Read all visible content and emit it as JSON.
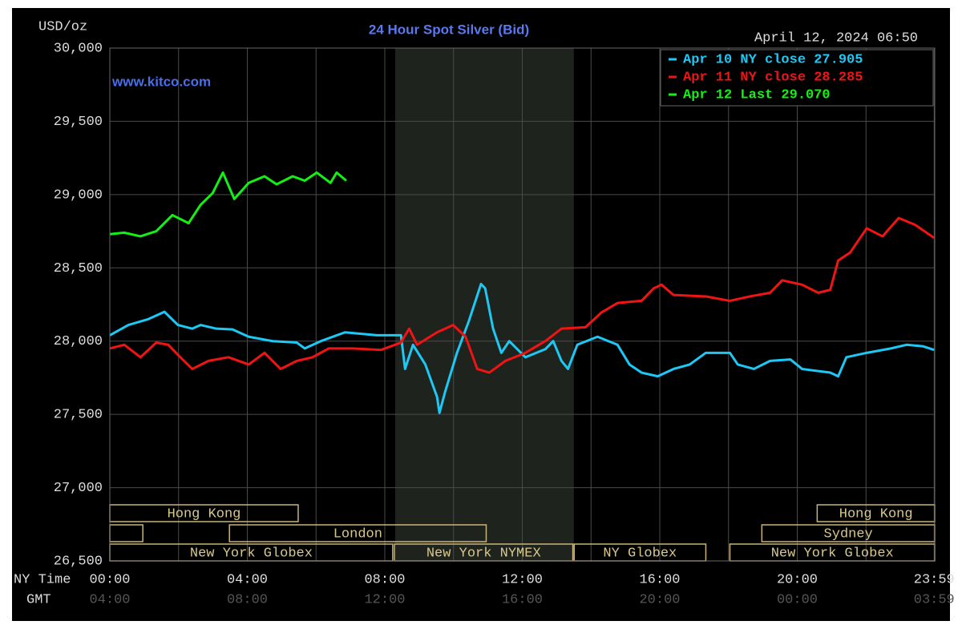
{
  "chart_data": {
    "type": "line",
    "title": "24 Hour Spot Silver (Bid)",
    "unit_label": "USD/oz",
    "timestamp": "April 12, 2024 06:50",
    "watermark": "www.kitco.com",
    "x_row_label": "NY Time",
    "gmt_row_label": "GMT",
    "xlim": [
      0,
      24
    ],
    "ylim": [
      26500,
      30000
    ],
    "yticks": [
      {
        "value": 30000,
        "label": "30,000"
      },
      {
        "value": 29500,
        "label": "29,500"
      },
      {
        "value": 29000,
        "label": "29,000"
      },
      {
        "value": 28500,
        "label": "28,500"
      },
      {
        "value": 28000,
        "label": "28,000"
      },
      {
        "value": 27500,
        "label": "27,500"
      },
      {
        "value": 27000,
        "label": "27,000"
      },
      {
        "value": 26500,
        "label": "26,500"
      }
    ],
    "xticks": [
      {
        "value": 0,
        "label": "00:00"
      },
      {
        "value": 4,
        "label": "04:00"
      },
      {
        "value": 8,
        "label": "08:00"
      },
      {
        "value": 12,
        "label": "12:00"
      },
      {
        "value": 16,
        "label": "16:00"
      },
      {
        "value": 20,
        "label": "20:00"
      },
      {
        "value": 23.983,
        "label": "23:59"
      }
    ],
    "gmt_labels": [
      "04:00",
      "08:00",
      "12:00",
      "16:00",
      "20:00",
      "00:00",
      "03:59"
    ],
    "x_minor_grid": [
      2,
      6,
      10,
      14,
      18,
      22
    ],
    "grid": true,
    "shaded_hours": [
      8.3,
      13.5
    ],
    "sessions": [
      {
        "label": "Hong Kong",
        "row": 1,
        "start": 0,
        "end": 5.48
      },
      {
        "label": "Hong Kong",
        "row": 1,
        "start": 20.58,
        "end": 24
      },
      {
        "label": null,
        "row": 2,
        "start": 0,
        "end": 0.96
      },
      {
        "label": "London",
        "row": 2,
        "start": 3.48,
        "end": 10.95
      },
      {
        "label": "Sydney",
        "row": 2,
        "start": 18.97,
        "end": 24
      },
      {
        "label": "New York Globex",
        "row": 3,
        "start": 0,
        "end": 8.23
      },
      {
        "label": "New York NYMEX",
        "row": 3,
        "start": 8.28,
        "end": 13.47
      },
      {
        "label": "NY Globex",
        "row": 3,
        "start": 13.51,
        "end": 17.34
      },
      {
        "label": "New York Globex",
        "row": 3,
        "start": 18.04,
        "end": 24
      }
    ],
    "series": [
      {
        "name": "Apr 10 NY close 27.905",
        "color": "#1ec8f5",
        "x": [
          0,
          0.54,
          1.12,
          1.59,
          1.98,
          2.4,
          2.64,
          3.1,
          3.57,
          4.04,
          4.74,
          5.44,
          5.67,
          6.14,
          6.84,
          7.77,
          8.47,
          8.59,
          8.82,
          9.18,
          9.52,
          9.59,
          9.75,
          10.1,
          10.45,
          10.8,
          10.92,
          11.15,
          11.39,
          11.62,
          12.09,
          12.67,
          12.9,
          13.14,
          13.33,
          13.6,
          14.19,
          14.77,
          15.12,
          15.47,
          15.94,
          16.4,
          16.87,
          17.34,
          18.04,
          18.27,
          18.74,
          19.21,
          19.8,
          20.14,
          20.96,
          21.19,
          21.43,
          22.02,
          22.72,
          23.18,
          23.65,
          23.98
        ],
        "values": [
          28040,
          28110,
          28150,
          28200,
          28110,
          28085,
          28110,
          28085,
          28080,
          28030,
          28000,
          27990,
          27950,
          28000,
          28060,
          28040,
          28040,
          27810,
          27975,
          27840,
          27620,
          27510,
          27650,
          27920,
          28140,
          28390,
          28360,
          28085,
          27920,
          28000,
          27890,
          27945,
          28000,
          27865,
          27810,
          27975,
          28030,
          27975,
          27840,
          27785,
          27760,
          27810,
          27840,
          27920,
          27920,
          27840,
          27810,
          27865,
          27875,
          27810,
          27785,
          27760,
          27890,
          27920,
          27950,
          27975,
          27965,
          27940
        ]
      },
      {
        "name": "Apr 11 NY close 28.285",
        "color": "#f01414",
        "x": [
          0,
          0.42,
          0.89,
          1.35,
          1.7,
          2.05,
          2.4,
          2.87,
          3.45,
          4.04,
          4.5,
          4.97,
          5.44,
          5.9,
          6.37,
          7.07,
          7.89,
          8.47,
          8.71,
          8.94,
          9.52,
          9.99,
          10.35,
          10.69,
          11.04,
          11.51,
          12.09,
          12.67,
          13.14,
          13.84,
          14.3,
          14.77,
          15.47,
          15.82,
          16.05,
          16.4,
          17.34,
          18.04,
          18.62,
          19.21,
          19.56,
          20.14,
          20.61,
          20.96,
          21.19,
          21.54,
          22.02,
          22.48,
          22.95,
          23.42,
          23.98
        ],
        "values": [
          27950,
          27975,
          27890,
          27990,
          27975,
          27890,
          27810,
          27865,
          27890,
          27840,
          27920,
          27810,
          27865,
          27890,
          27950,
          27950,
          27940,
          27990,
          28085,
          27975,
          28060,
          28110,
          28030,
          27810,
          27785,
          27865,
          27920,
          28000,
          28085,
          28095,
          28195,
          28260,
          28275,
          28360,
          28385,
          28315,
          28305,
          28275,
          28305,
          28330,
          28415,
          28385,
          28330,
          28350,
          28550,
          28605,
          28770,
          28715,
          28840,
          28795,
          28705
        ]
      },
      {
        "name": "Apr 12 Last 29.070",
        "color": "#14f014",
        "x": [
          0,
          0.42,
          0.89,
          1.35,
          1.82,
          2.29,
          2.64,
          2.99,
          3.29,
          3.62,
          4.04,
          4.5,
          4.85,
          5.32,
          5.67,
          6.02,
          6.42,
          6.6,
          6.88
        ],
        "values": [
          28730,
          28740,
          28715,
          28750,
          28860,
          28805,
          28930,
          29010,
          29150,
          28970,
          29080,
          29125,
          29070,
          29125,
          29095,
          29150,
          29080,
          29150,
          29095
        ]
      }
    ]
  }
}
